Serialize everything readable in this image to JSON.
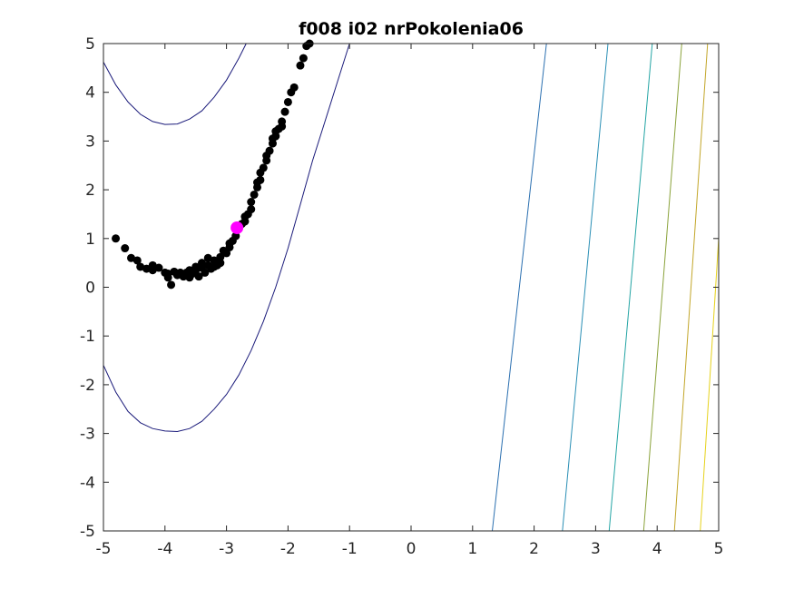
{
  "chart_data": {
    "type": "scatter",
    "title": "f008 i02 nrPokolenia06",
    "xlabel": "",
    "ylabel": "",
    "xlim": [
      -5,
      5
    ],
    "ylim": [
      -5,
      5
    ],
    "x_ticks": [
      -5,
      -4,
      -3,
      -2,
      -1,
      0,
      1,
      2,
      3,
      4,
      5
    ],
    "y_ticks": [
      -5,
      -4,
      -3,
      -2,
      -1,
      0,
      1,
      2,
      3,
      4,
      5
    ],
    "x_tick_labels": [
      "-5",
      "-4",
      "-3",
      "-2",
      "-1",
      "0",
      "1",
      "2",
      "3",
      "4",
      "5"
    ],
    "y_tick_labels": [
      "-5",
      "-4",
      "-3",
      "-2",
      "-1",
      "0",
      "1",
      "2",
      "3",
      "4",
      "5"
    ],
    "grid": false,
    "colors": {
      "population": "#000000",
      "best": "#ff00ff",
      "axes": "#262626"
    },
    "contours": [
      {
        "color": "#1a1a7a",
        "points": [
          [
            -5,
            4.62
          ],
          [
            -4.8,
            4.15
          ],
          [
            -4.6,
            3.8
          ],
          [
            -4.4,
            3.55
          ],
          [
            -4.2,
            3.4
          ],
          [
            -4.0,
            3.34
          ],
          [
            -3.8,
            3.35
          ],
          [
            -3.6,
            3.45
          ],
          [
            -3.4,
            3.62
          ],
          [
            -3.2,
            3.9
          ],
          [
            -3.0,
            4.25
          ],
          [
            -2.8,
            4.7
          ],
          [
            -2.68,
            5
          ]
        ]
      },
      {
        "color": "#1a1a7a",
        "points": [
          [
            -5,
            -1.6
          ],
          [
            -4.8,
            -2.15
          ],
          [
            -4.6,
            -2.55
          ],
          [
            -4.4,
            -2.78
          ],
          [
            -4.2,
            -2.9
          ],
          [
            -4.0,
            -2.95
          ],
          [
            -3.8,
            -2.96
          ],
          [
            -3.6,
            -2.9
          ],
          [
            -3.4,
            -2.75
          ],
          [
            -3.2,
            -2.5
          ],
          [
            -3.0,
            -2.2
          ],
          [
            -2.8,
            -1.8
          ],
          [
            -2.6,
            -1.3
          ],
          [
            -2.4,
            -0.7
          ],
          [
            -2.2,
            0.0
          ],
          [
            -2.0,
            0.8
          ],
          [
            -1.8,
            1.7
          ],
          [
            -1.6,
            2.6
          ],
          [
            -1.4,
            3.4
          ],
          [
            -1.2,
            4.2
          ],
          [
            -1.0,
            5
          ]
        ]
      },
      {
        "color": "#2a6fb0",
        "points": [
          [
            1.32,
            -5
          ],
          [
            2.2,
            5
          ]
        ]
      },
      {
        "color": "#2a8fb5",
        "points": [
          [
            2.46,
            -5
          ],
          [
            3.2,
            5
          ]
        ]
      },
      {
        "color": "#23a4a4",
        "points": [
          [
            3.22,
            -5
          ],
          [
            3.92,
            5
          ]
        ]
      },
      {
        "color": "#8aa23a",
        "points": [
          [
            3.78,
            -5
          ],
          [
            4.4,
            5
          ]
        ]
      },
      {
        "color": "#c2a629",
        "points": [
          [
            4.28,
            -5
          ],
          [
            4.82,
            5
          ]
        ]
      },
      {
        "color": "#e6d21c",
        "points": [
          [
            4.7,
            -5
          ],
          [
            5.0,
            1.0
          ]
        ]
      }
    ],
    "series": [
      {
        "values": [
          [
            -4.8,
            1.0
          ],
          [
            -4.65,
            0.8
          ],
          [
            -4.55,
            0.6
          ],
          [
            -4.45,
            0.55
          ],
          [
            -4.4,
            0.42
          ],
          [
            -4.3,
            0.38
          ],
          [
            -4.2,
            0.45
          ],
          [
            -4.2,
            0.35
          ],
          [
            -4.0,
            0.3
          ],
          [
            -3.95,
            0.2
          ],
          [
            -3.9,
            0.05
          ],
          [
            -3.8,
            0.25
          ],
          [
            -3.75,
            0.3
          ],
          [
            -3.7,
            0.22
          ],
          [
            -3.65,
            0.3
          ],
          [
            -3.6,
            0.2
          ],
          [
            -3.55,
            0.28
          ],
          [
            -3.5,
            0.35
          ],
          [
            -3.45,
            0.22
          ],
          [
            -3.4,
            0.4
          ],
          [
            -3.35,
            0.3
          ],
          [
            -3.3,
            0.45
          ],
          [
            -3.25,
            0.38
          ],
          [
            -3.2,
            0.55
          ],
          [
            -3.15,
            0.45
          ],
          [
            -3.1,
            0.62
          ],
          [
            -3.05,
            0.75
          ],
          [
            -3.0,
            0.7
          ],
          [
            -2.95,
            0.9
          ],
          [
            -2.9,
            0.95
          ],
          [
            -2.85,
            1.05
          ],
          [
            -2.8,
            1.2
          ],
          [
            -2.75,
            1.3
          ],
          [
            -2.7,
            1.45
          ],
          [
            -2.65,
            1.5
          ],
          [
            -2.6,
            1.75
          ],
          [
            -2.55,
            1.9
          ],
          [
            -2.5,
            2.05
          ],
          [
            -2.45,
            2.2
          ],
          [
            -2.4,
            2.45
          ],
          [
            -2.35,
            2.6
          ],
          [
            -2.3,
            2.8
          ],
          [
            -2.25,
            2.95
          ],
          [
            -2.2,
            3.1
          ],
          [
            -2.15,
            3.25
          ],
          [
            -2.1,
            3.4
          ],
          [
            -2.05,
            3.6
          ],
          [
            -2.0,
            3.8
          ],
          [
            -1.95,
            4.0
          ],
          [
            -1.9,
            4.1
          ],
          [
            -1.8,
            4.55
          ],
          [
            -1.75,
            4.7
          ],
          [
            -1.7,
            4.95
          ],
          [
            -1.65,
            5.0
          ],
          [
            -3.6,
            0.35
          ],
          [
            -3.5,
            0.42
          ],
          [
            -3.4,
            0.5
          ],
          [
            -3.3,
            0.6
          ],
          [
            -3.2,
            0.42
          ],
          [
            -3.1,
            0.5
          ],
          [
            -2.95,
            0.82
          ],
          [
            -2.7,
            1.35
          ],
          [
            -2.5,
            2.15
          ],
          [
            -2.35,
            2.7
          ],
          [
            -2.25,
            3.05
          ],
          [
            -2.1,
            3.3
          ],
          [
            -3.85,
            0.32
          ],
          [
            -3.95,
            0.28
          ],
          [
            -4.1,
            0.4
          ],
          [
            -2.6,
            1.6
          ],
          [
            -2.45,
            2.35
          ],
          [
            -2.2,
            3.2
          ]
        ]
      }
    ],
    "best_point": [
      -2.83,
      1.22
    ]
  }
}
